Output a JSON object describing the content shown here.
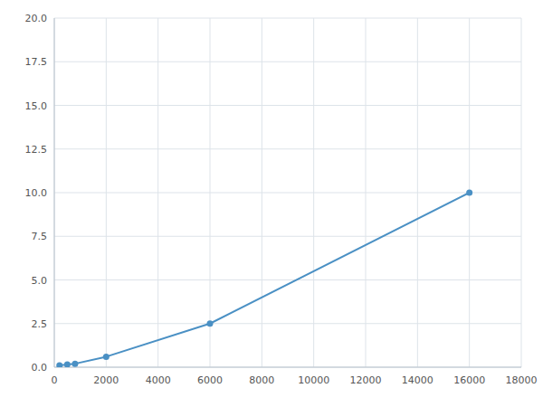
{
  "chart_data": {
    "type": "line",
    "x": [
      200,
      500,
      800,
      2000,
      6000,
      16000
    ],
    "values": [
      0.1,
      0.15,
      0.2,
      0.6,
      2.5,
      10.0
    ],
    "color": "#4a90c4",
    "marker": "circle",
    "xlim": [
      0,
      18000
    ],
    "ylim": [
      0,
      20.0
    ],
    "xticks": [
      0,
      2000,
      4000,
      6000,
      8000,
      10000,
      12000,
      14000,
      16000,
      18000
    ],
    "yticks": [
      {
        "value": 0,
        "label": "0.0"
      },
      2.5,
      {
        "value": 5,
        "label": "5.0"
      },
      7.5,
      {
        "value": 10,
        "label": "10.0"
      },
      12.5,
      {
        "value": 15,
        "label": "15.0"
      },
      17.5,
      {
        "value": 20,
        "label": "20.0"
      }
    ],
    "grid": true
  }
}
